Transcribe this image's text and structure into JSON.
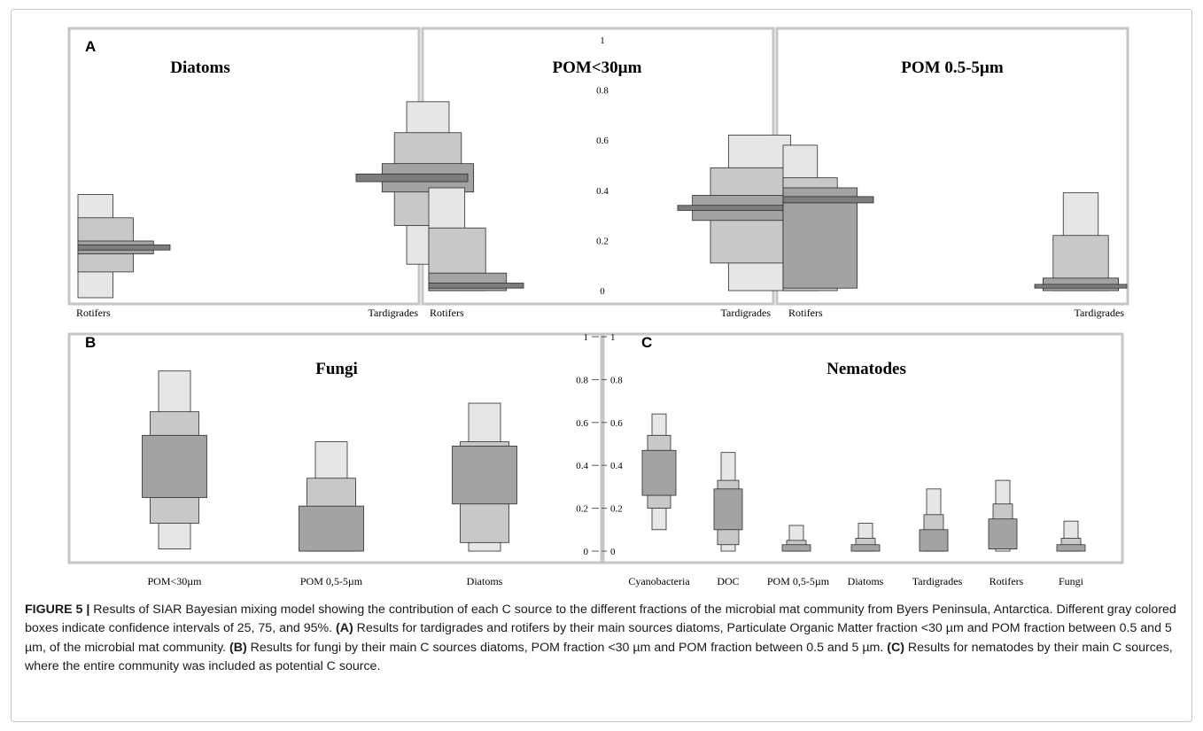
{
  "figure": {
    "caption": {
      "label": "FIGURE 5 |",
      "p1": " Results of SIAR Bayesian mixing model showing the contribution of each C source to the different fractions of the microbial mat community from Byers Peninsula, Antarctica. Different gray colored boxes indicate confidence intervals of 25, 75, and 95%. ",
      "a_label": "(A)",
      "p2": " Results for tardigrades and rotifers by their main sources diatoms, Particulate Organic Matter fraction <30 µm and POM fraction between 0.5 and 5 µm, of the microbial mat community. ",
      "b_label": "(B)",
      "p3": " Results for fungi by their main C sources diatoms, POM fraction <30 µm and POM fraction between 0.5 and 5 µm. ",
      "c_label": "(C)",
      "p4": " Results for nematodes by their main C sources, where the entire community was included as potential C source."
    }
  },
  "chart_data": [
    {
      "type": "box",
      "panel": "A",
      "title": "Diatoms",
      "orientation": "horizontal-width",
      "categories": [
        "Rotifers",
        "Tardigrades"
      ],
      "intervals": [
        {
          "category": "Rotifers",
          "ci95": [
            0.0,
            0.4
          ],
          "ci75": [
            0.1,
            0.31
          ],
          "ci25": [
            0.17,
            0.22
          ],
          "median_band": [
            0.185,
            0.205
          ]
        },
        {
          "category": "Tardigrades",
          "ci95": [
            0.13,
            0.76
          ],
          "ci75": [
            0.28,
            0.64
          ],
          "ci25": [
            0.41,
            0.52
          ],
          "median_band": [
            0.45,
            0.48
          ]
        }
      ]
    },
    {
      "type": "box",
      "panel": "A",
      "title": "POM<30µm",
      "yticks": [
        0,
        0.2,
        0.4,
        0.6,
        0.8,
        1
      ],
      "ylim": [
        0,
        1
      ],
      "categories": [
        "Rotifers",
        "Tardigrades"
      ],
      "intervals": [
        {
          "category": "Rotifers",
          "ci95": [
            0.0,
            0.41
          ],
          "ci75": [
            0.0,
            0.25
          ],
          "ci25": [
            0.0,
            0.07
          ],
          "median_band": [
            0.01,
            0.03
          ]
        },
        {
          "category": "Tardigrades",
          "ci95": [
            0.0,
            0.62
          ],
          "ci75": [
            0.11,
            0.49
          ],
          "ci25": [
            0.28,
            0.38
          ],
          "median_band": [
            0.32,
            0.34
          ]
        }
      ]
    },
    {
      "type": "box",
      "panel": "A",
      "title": "POM 0.5-5µm",
      "categories": [
        "Rotifers",
        "Tardigrades"
      ],
      "intervals": [
        {
          "category": "Rotifers",
          "ci95": [
            0.0,
            0.58
          ],
          "ci75": [
            0.0,
            0.45
          ],
          "ci25": [
            0.01,
            0.41
          ],
          "median_band": [
            0.35,
            0.375
          ]
        },
        {
          "category": "Tardigrades",
          "ci95": [
            0.0,
            0.39
          ],
          "ci75": [
            0.0,
            0.22
          ],
          "ci25": [
            0.0,
            0.05
          ],
          "median_band": [
            0.01,
            0.025
          ]
        }
      ]
    },
    {
      "type": "box",
      "panel": "B",
      "title": "Fungi",
      "yticks": [
        0,
        0.2,
        0.4,
        0.6,
        0.8,
        1
      ],
      "ylim": [
        0,
        1
      ],
      "categories": [
        "POM<30µm",
        "POM 0,5-5µm",
        "Diatoms"
      ],
      "intervals": [
        {
          "category": "POM<30µm",
          "ci95": [
            0.01,
            0.84
          ],
          "ci75": [
            0.13,
            0.65
          ],
          "ci25": [
            0.25,
            0.54
          ],
          "median_band": null
        },
        {
          "category": "POM 0,5-5µm",
          "ci95": [
            0.0,
            0.51
          ],
          "ci75": [
            0.0,
            0.34
          ],
          "ci25": [
            0.0,
            0.21
          ],
          "median_band": null
        },
        {
          "category": "Diatoms",
          "ci95": [
            0.0,
            0.69
          ],
          "ci75": [
            0.04,
            0.51
          ],
          "ci25": [
            0.22,
            0.49
          ],
          "median_band": null
        }
      ]
    },
    {
      "type": "box",
      "panel": "C",
      "title": "Nematodes",
      "yticks": [
        0,
        0.2,
        0.4,
        0.6,
        0.8,
        1
      ],
      "ylim": [
        0,
        1
      ],
      "categories": [
        "Cyanobacteria",
        "DOC",
        "POM 0,5-5µm",
        "Diatoms",
        "Tardigrades",
        "Rotifers",
        "Fungi"
      ],
      "intervals": [
        {
          "category": "Cyanobacteria",
          "ci95": [
            0.1,
            0.64
          ],
          "ci75": [
            0.2,
            0.54
          ],
          "ci25": [
            0.26,
            0.47
          ]
        },
        {
          "category": "DOC",
          "ci95": [
            0.0,
            0.46
          ],
          "ci75": [
            0.03,
            0.33
          ],
          "ci25": [
            0.1,
            0.29
          ]
        },
        {
          "category": "POM 0,5-5µm",
          "ci95": [
            0.0,
            0.12
          ],
          "ci75": [
            0.0,
            0.05
          ],
          "ci25": [
            0.0,
            0.03
          ]
        },
        {
          "category": "Diatoms",
          "ci95": [
            0.0,
            0.13
          ],
          "ci75": [
            0.0,
            0.06
          ],
          "ci25": [
            0.0,
            0.03
          ]
        },
        {
          "category": "Tardigrades",
          "ci95": [
            0.0,
            0.29
          ],
          "ci75": [
            0.0,
            0.17
          ],
          "ci25": [
            0.0,
            0.1
          ]
        },
        {
          "category": "Rotifers",
          "ci95": [
            0.0,
            0.33
          ],
          "ci75": [
            0.01,
            0.22
          ],
          "ci25": [
            0.01,
            0.15
          ]
        },
        {
          "category": "Fungi",
          "ci95": [
            0.0,
            0.14
          ],
          "ci75": [
            0.0,
            0.06
          ],
          "ci25": [
            0.0,
            0.03
          ]
        }
      ]
    }
  ],
  "panel_labels": {
    "a": "A",
    "b": "B",
    "c": "C"
  },
  "colors": {
    "ci95": "#e6e6e6",
    "ci75": "#c8c8c8",
    "ci25": "#a3a3a3",
    "median": "#7d7d7d",
    "stroke": "#2b2b2b",
    "frame": "#c6c6c6"
  }
}
